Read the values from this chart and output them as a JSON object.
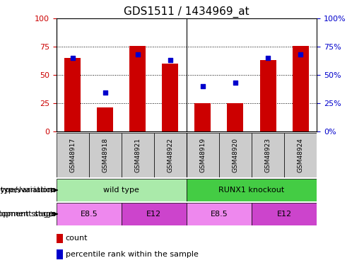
{
  "title": "GDS1511 / 1434969_at",
  "samples": [
    "GSM48917",
    "GSM48918",
    "GSM48921",
    "GSM48922",
    "GSM48919",
    "GSM48920",
    "GSM48923",
    "GSM48924"
  ],
  "count_values": [
    65,
    21,
    76,
    60,
    25,
    25,
    63,
    76
  ],
  "percentile_values": [
    65,
    34,
    68,
    63,
    40,
    43,
    65,
    68
  ],
  "bar_color": "#cc0000",
  "dot_color": "#0000cc",
  "ylim": [
    0,
    100
  ],
  "yticks": [
    0,
    25,
    50,
    75,
    100
  ],
  "genotype_groups": [
    {
      "label": "wild type",
      "start": 0,
      "end": 4,
      "color": "#aaeaaa"
    },
    {
      "label": "RUNX1 knockout",
      "start": 4,
      "end": 8,
      "color": "#44cc44"
    }
  ],
  "stage_groups": [
    {
      "label": "E8.5",
      "start": 0,
      "end": 2,
      "color": "#ee88ee"
    },
    {
      "label": "E12",
      "start": 2,
      "end": 4,
      "color": "#cc44cc"
    },
    {
      "label": "E8.5",
      "start": 4,
      "end": 6,
      "color": "#ee88ee"
    },
    {
      "label": "E12",
      "start": 6,
      "end": 8,
      "color": "#cc44cc"
    }
  ],
  "genotype_label": "genotype/variation",
  "stage_label": "development stage",
  "legend_count": "count",
  "legend_percentile": "percentile rank within the sample",
  "title_fontsize": 11,
  "axis_label_color_left": "#cc0000",
  "axis_label_color_right": "#0000cc",
  "sample_box_color": "#cccccc",
  "bar_width": 0.5
}
